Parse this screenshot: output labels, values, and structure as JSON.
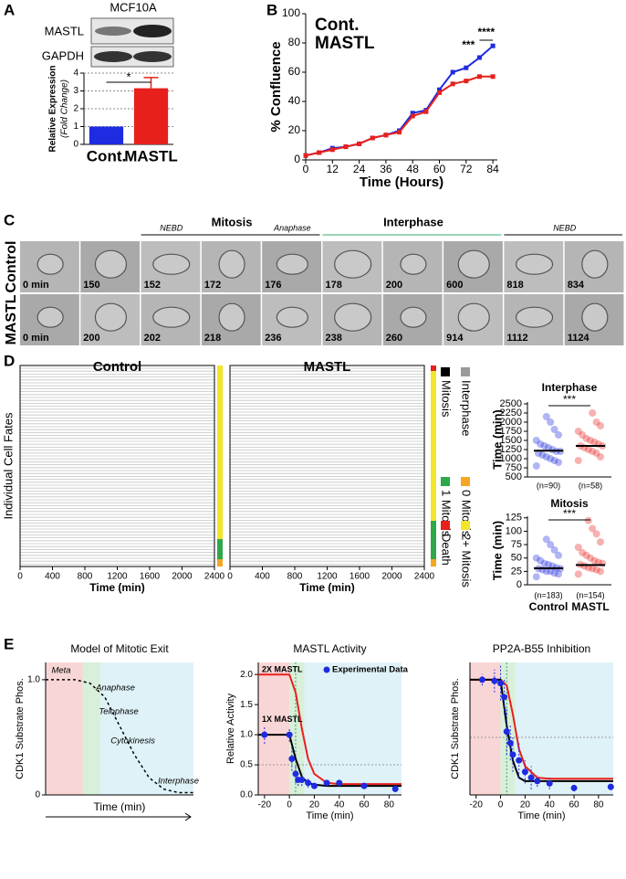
{
  "panel_labels": [
    "A",
    "B",
    "C",
    "D",
    "E"
  ],
  "blot": {
    "cell_line": "MCF10A",
    "rows": [
      "MASTL",
      "GAPDH"
    ]
  },
  "microscopy": {
    "phases": [
      "NEBD",
      "Mitosis",
      "Anaphase",
      "Interphase",
      "NEBD"
    ],
    "rows": [
      {
        "label": "Control",
        "times": [
          "0 min",
          "150",
          "152",
          "172",
          "176",
          "178",
          "200",
          "600",
          "818",
          "834"
        ]
      },
      {
        "label": "MASTL",
        "times": [
          "0 min",
          "200",
          "202",
          "218",
          "236",
          "238",
          "260",
          "914",
          "1112",
          "1124"
        ]
      }
    ]
  },
  "chart_data": [
    {
      "type": "bar",
      "ylabel": "Relative Expression",
      "ylabel_note": "(Fold Change)",
      "categories": [
        "Cont.",
        "MASTL"
      ],
      "values": [
        1,
        3.15
      ],
      "errors": [
        0,
        0.6
      ],
      "colors": [
        "#1f2be0",
        "#e8201c"
      ],
      "ylim": [
        0,
        4
      ],
      "yticks": [
        0,
        1,
        2,
        3,
        4
      ],
      "grid": true,
      "significance": "*"
    },
    {
      "type": "line",
      "ylabel": "% Confluence",
      "xlabel": "Time (Hours)",
      "x": [
        0,
        6,
        12,
        18,
        24,
        30,
        36,
        42,
        48,
        54,
        60,
        66,
        72,
        78,
        84
      ],
      "series": [
        {
          "name": "Cont.",
          "color": "#1f2be0",
          "values": [
            3,
            5,
            8,
            9,
            11,
            15,
            17,
            20,
            32,
            34,
            48,
            60,
            63,
            70,
            78
          ]
        },
        {
          "name": "MASTL",
          "color": "#e8201c",
          "values": [
            3,
            5,
            7,
            9,
            11,
            15,
            17,
            19,
            30,
            33,
            46,
            52,
            54,
            57,
            57
          ]
        }
      ],
      "xlim": [
        0,
        86
      ],
      "xticks": [
        0,
        12,
        24,
        36,
        48,
        60,
        72,
        84
      ],
      "ylim": [
        0,
        100
      ],
      "yticks": [
        0,
        20,
        40,
        60,
        80,
        100
      ],
      "annotations": [
        "***",
        "****"
      ]
    },
    {
      "type": "raster",
      "titles": [
        "Control",
        "MASTL"
      ],
      "title_colors": [
        "#1f2be0",
        "#e8201c"
      ],
      "ylabel": "Individual Cell Fates",
      "xlabel": "Time (min)",
      "xlim": [
        0,
        2400
      ],
      "xticks": [
        0,
        400,
        800,
        1200,
        1600,
        2000,
        2400
      ],
      "series": [
        {
          "name": "Mitosis",
          "color": "#000000"
        },
        {
          "name": "Interphase",
          "color": "#9a9a9a"
        },
        {
          "name": "1 Mitosis",
          "color": "#2ea84a"
        },
        {
          "name": "0 Mitosis",
          "color": "#f5a623"
        },
        {
          "name": "Death",
          "color": "#e8201c"
        },
        {
          "name": "2+ Mitosis",
          "color": "#f2e52a"
        }
      ]
    },
    {
      "type": "strip",
      "title": "Interphase",
      "ylabel": "Time (min)",
      "groups": [
        {
          "color": "#1f2be0",
          "values": [
            800,
            900,
            950,
            1000,
            1050,
            1100,
            1150,
            1200,
            1200,
            1250,
            1300,
            1350,
            1400,
            1500,
            1650,
            1800,
            2000,
            2150
          ],
          "mean": 1220
        },
        {
          "color": "#e8201c",
          "values": [
            950,
            1050,
            1150,
            1200,
            1250,
            1300,
            1350,
            1350,
            1400,
            1450,
            1500,
            1550,
            1650,
            1750,
            1900,
            2000,
            2250
          ],
          "mean": 1350
        }
      ],
      "n_labels": [
        "(n=90)",
        "(n=58)"
      ],
      "ylim": [
        500,
        2550
      ],
      "yticks": [
        500,
        750,
        1000,
        1250,
        1500,
        1750,
        2000,
        2250,
        2500
      ],
      "significance": "***"
    },
    {
      "type": "strip",
      "title": "Mitosis",
      "ylabel": "Time (min)",
      "categories": [
        "Control",
        "MASTL"
      ],
      "groups": [
        {
          "color": "#1f2be0",
          "values": [
            15,
            20,
            22,
            25,
            25,
            28,
            30,
            30,
            32,
            35,
            38,
            40,
            45,
            50,
            55,
            65,
            75,
            85
          ],
          "mean": 31
        },
        {
          "color": "#e8201c",
          "values": [
            20,
            25,
            28,
            30,
            32,
            35,
            38,
            40,
            42,
            45,
            50,
            55,
            60,
            70,
            80,
            95,
            105,
            120
          ],
          "mean": 37
        }
      ],
      "n_labels": [
        "(n=183)",
        "(n=154)"
      ],
      "ylim": [
        0,
        128
      ],
      "yticks": [
        0,
        25,
        50,
        75,
        100,
        125
      ],
      "significance": "***"
    },
    {
      "type": "line",
      "title": "Model of Mitotic Exit",
      "ylabel": "CDK1 Substrate Phos.",
      "xlabel": "Time (min)",
      "x": [
        0,
        10,
        20,
        30,
        40,
        50,
        60,
        70,
        80,
        90,
        100
      ],
      "series": [
        {
          "color": "#000000",
          "dash": true,
          "values": [
            1,
            1,
            1,
            0.97,
            0.85,
            0.6,
            0.35,
            0.15,
            0.05,
            0.02,
            0.02
          ]
        }
      ],
      "xlim": [
        0,
        100
      ],
      "ylim": [
        0,
        1.15
      ],
      "yticks": [
        0,
        {
          "value": 1,
          "label": "1.0"
        }
      ],
      "annotations": [
        "Meta",
        "Anaphase",
        "Telophase",
        "Cytokinesis",
        "Interphase"
      ]
    },
    {
      "type": "line",
      "title": "MASTL Activity",
      "ylabel": "Relative Activity",
      "xlabel": "Time (min)",
      "series": [
        {
          "name": "2X MASTL",
          "color": "#e8201c",
          "x": [
            -25,
            0,
            5,
            10,
            15,
            20,
            30,
            40,
            60,
            90
          ],
          "values": [
            2.0,
            2.0,
            1.7,
            1.1,
            0.6,
            0.35,
            0.2,
            0.18,
            0.18,
            0.18
          ]
        },
        {
          "name": "1X MASTL",
          "color": "#000000",
          "x": [
            -25,
            0,
            5,
            10,
            15,
            20,
            30,
            40,
            60,
            90
          ],
          "values": [
            1.0,
            1.0,
            0.6,
            0.3,
            0.2,
            0.17,
            0.15,
            0.15,
            0.15,
            0.15
          ]
        },
        {
          "name": "Experimental Data",
          "color": "#1f2be0",
          "style": "points",
          "x": [
            -20,
            0,
            2,
            5,
            7,
            10,
            15,
            20,
            30,
            40,
            60,
            85
          ],
          "values": [
            1.0,
            1.0,
            0.6,
            0.35,
            0.25,
            0.25,
            0.2,
            0.15,
            0.2,
            0.2,
            0.15,
            0.1
          ],
          "errors": [
            0.15,
            0.12,
            0.2,
            0.15,
            0.1,
            0.1,
            0.08,
            0.05,
            0.05,
            0.05,
            0.05,
            0.05
          ]
        }
      ],
      "xlim": [
        -25,
        90
      ],
      "xticks": [
        -20,
        0,
        20,
        40,
        60,
        80
      ],
      "ylim": [
        0,
        2.2
      ],
      "yticks": [
        {
          "value": 0,
          "label": "0.0"
        },
        0.5,
        {
          "value": 1,
          "label": "1.0"
        },
        1.5,
        {
          "value": 2,
          "label": "2.0"
        }
      ]
    },
    {
      "type": "line",
      "title": "PP2A-B55 Inhibition",
      "ylabel": "CDK1 Substrate Phos.",
      "xlabel": "Time (min)",
      "series": [
        {
          "color": "#e8201c",
          "x": [
            -25,
            0,
            5,
            10,
            15,
            20,
            30,
            40,
            60,
            92
          ],
          "values": [
            1,
            1,
            0.95,
            0.7,
            0.4,
            0.25,
            0.15,
            0.14,
            0.14,
            0.14
          ]
        },
        {
          "color": "#000000",
          "x": [
            -25,
            0,
            5,
            10,
            15,
            20,
            30,
            40,
            60,
            92
          ],
          "values": [
            1,
            1,
            0.6,
            0.3,
            0.15,
            0.12,
            0.12,
            0.12,
            0.12,
            0.12
          ]
        },
        {
          "color": "#1f2be0",
          "style": "points",
          "x": [
            -15,
            -5,
            0,
            3,
            5,
            8,
            10,
            15,
            20,
            25,
            30,
            40,
            60,
            90
          ],
          "values": [
            1.0,
            0.99,
            0.97,
            0.85,
            0.55,
            0.45,
            0.35,
            0.3,
            0.2,
            0.15,
            0.12,
            0.1,
            0.06,
            0.07
          ],
          "errors": [
            0.05,
            0.1,
            0.15,
            0.15,
            0.2,
            0.15,
            0.15,
            0.15,
            0.1,
            0.1,
            0.05,
            0.05,
            0.03,
            0.03
          ]
        }
      ],
      "xlim": [
        -25,
        92
      ],
      "xticks": [
        -20,
        0,
        20,
        40,
        60,
        80
      ],
      "ylim": [
        0,
        1.15
      ]
    }
  ]
}
